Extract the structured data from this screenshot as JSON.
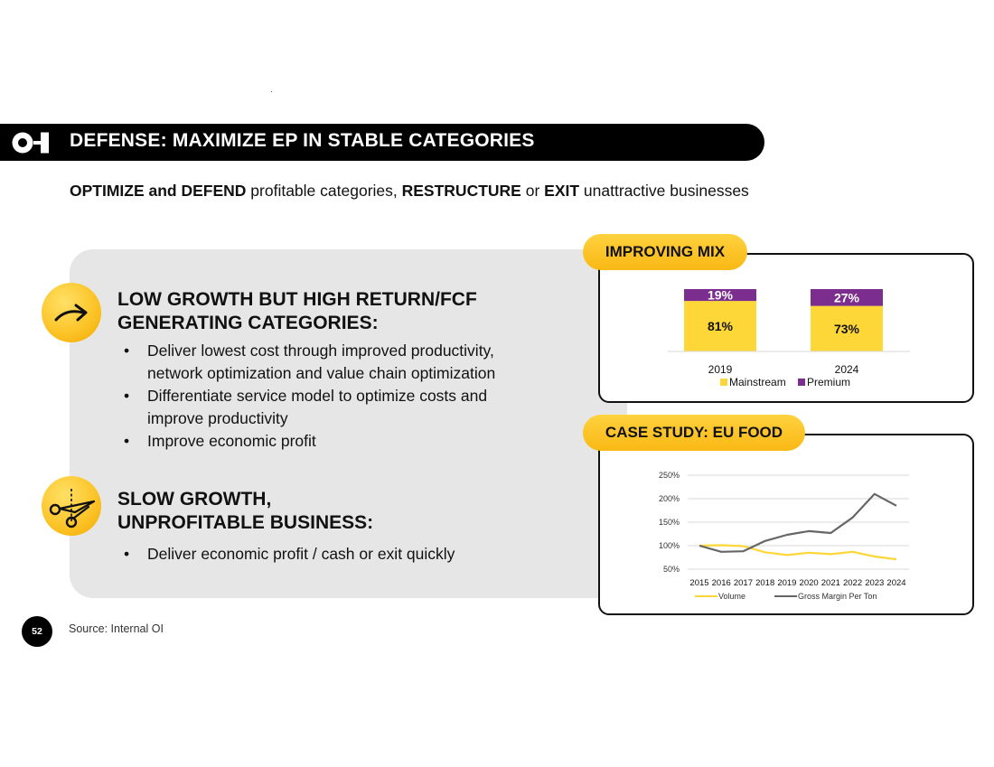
{
  "header": {
    "title": "DEFENSE:  MAXIMIZE EP IN STABLE CATEGORIES",
    "logo_icon": "oi-logo-icon"
  },
  "subtitle": {
    "parts": [
      {
        "text": "OPTIMIZE and DEFEND",
        "bold": true
      },
      {
        "text": " profitable categories, ",
        "bold": false
      },
      {
        "text": "RESTRUCTURE",
        "bold": true
      },
      {
        "text": " or ",
        "bold": false
      },
      {
        "text": "EXIT",
        "bold": true
      },
      {
        "text": " unattractive businesses",
        "bold": false
      }
    ]
  },
  "section1": {
    "icon": "trend-arrow-icon",
    "title_line1": "LOW GROWTH BUT HIGH RETURN/FCF",
    "title_line2": "GENERATING CATEGORIES:",
    "bullets": [
      {
        "line1": "Deliver lowest cost through improved productivity,",
        "line2": "network optimization and value chain optimization"
      },
      {
        "line1": "Differentiate service model to optimize costs and",
        "line2": "improve productivity"
      },
      {
        "line1": "Improve economic profit",
        "line2": ""
      }
    ]
  },
  "section2": {
    "icon": "scissors-icon",
    "title_line1": "SLOW GROWTH,",
    "title_line2": "UNPROFITABLE BUSINESS:",
    "bullets": [
      {
        "line1": "Deliver economic profit / cash or exit quickly",
        "line2": ""
      }
    ]
  },
  "mix_panel": {
    "label": "IMPROVING MIX"
  },
  "case_panel": {
    "label": "CASE STUDY: EU FOOD"
  },
  "colors": {
    "mainstream": "#fdd638",
    "premium": "#7b2e8e",
    "volume": "#fdd638",
    "gross_margin": "#666666",
    "accent": "#f9b814"
  },
  "chart_data": [
    {
      "type": "bar",
      "stacked": true,
      "categories": [
        "2019",
        "2024"
      ],
      "series": [
        {
          "name": "Mainstream",
          "values": [
            81,
            73
          ],
          "labels": [
            "81%",
            "73%"
          ]
        },
        {
          "name": "Premium",
          "values": [
            19,
            27
          ],
          "labels": [
            "19%",
            "27%"
          ]
        }
      ],
      "legend_position": "bottom",
      "ylim": [
        0,
        100
      ],
      "grid": false
    },
    {
      "type": "line",
      "x": [
        "2015",
        "2016",
        "2017",
        "2018",
        "2019",
        "2020",
        "2021",
        "2022",
        "2023",
        "2024"
      ],
      "series": [
        {
          "name": "Volume",
          "values": [
            100,
            101,
            99,
            86,
            80,
            85,
            82,
            87,
            77,
            71
          ]
        },
        {
          "name": "Gross Margin Per Ton",
          "values": [
            100,
            87,
            88,
            110,
            123,
            131,
            127,
            160,
            210,
            185
          ]
        }
      ],
      "ylim": [
        50,
        250
      ],
      "yticks": [
        50,
        100,
        150,
        200,
        250
      ],
      "ytick_labels": [
        "50%",
        "100%",
        "150%",
        "200%",
        "250%"
      ],
      "grid": true,
      "legend_position": "bottom"
    }
  ],
  "footer": {
    "page_number": "52",
    "source": "Source: Internal OI"
  }
}
